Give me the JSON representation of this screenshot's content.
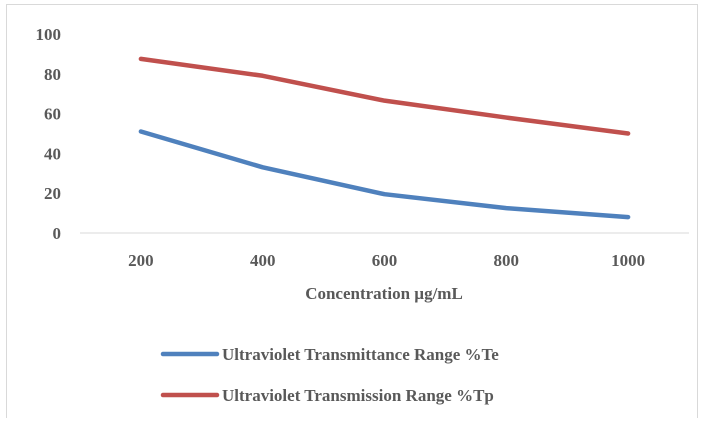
{
  "chart_data": {
    "type": "line",
    "title": "",
    "xlabel": "Concentration µg/mL",
    "ylabel": "",
    "categories": [
      "200",
      "400",
      "600",
      "800",
      "1000"
    ],
    "ylim": [
      0,
      100
    ],
    "yticks": [
      "0",
      "20",
      "40",
      "60",
      "80",
      "100"
    ],
    "grid": false,
    "legend_position": "bottom",
    "series": [
      {
        "name": "Ultraviolet Transmittance Range %Te",
        "values": [
          51,
          33,
          19.5,
          12.5,
          8
        ],
        "color": "#4f81bd"
      },
      {
        "name": "Ultraviolet Transmission Range %Tp",
        "values": [
          87.5,
          79,
          66.5,
          58,
          50
        ],
        "color": "#c0504d"
      }
    ]
  }
}
